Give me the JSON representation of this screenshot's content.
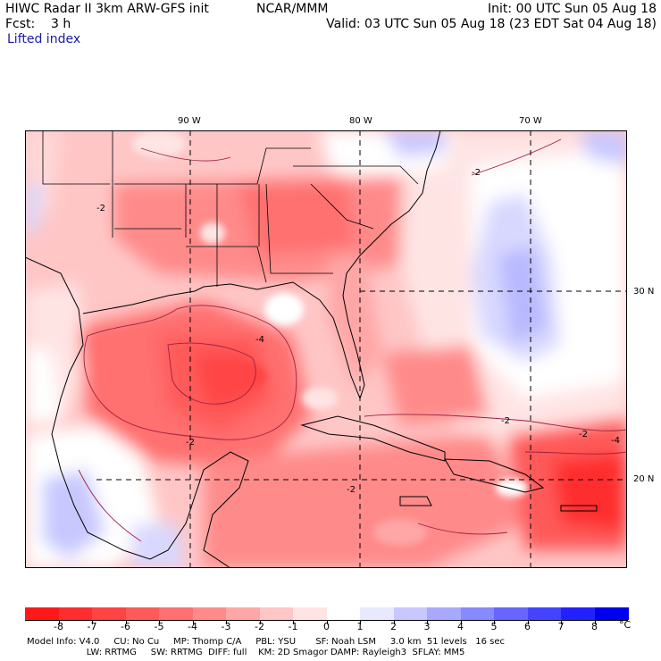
{
  "header": {
    "left_line1": "HIWC Radar II 3km ARW-GFS init",
    "center_line1": "NCAR/MMM",
    "right_line1": "Init: 00 UTC Sun 05 Aug 18",
    "left_line2": "Fcst:    3 h",
    "right_line2": "Valid: 03 UTC Sun 05 Aug 18 (23 EDT Sat 04 Aug 18)",
    "field_name": "Lifted index"
  },
  "map": {
    "lon_labels": [
      "90 W",
      "80 W",
      "70 W"
    ],
    "lat_labels": [
      "30 N",
      "20 N"
    ],
    "contour_labels": [
      "-2",
      "-4",
      "-2",
      "-2",
      "-2",
      "-4",
      "-2",
      "-2"
    ]
  },
  "colorbar": {
    "unit": "°C",
    "ticks": [
      "-8",
      "-7",
      "-6",
      "-5",
      "-4",
      "-3",
      "-2",
      "-1",
      "0",
      "1",
      "2",
      "3",
      "4",
      "5",
      "6",
      "7",
      "8"
    ],
    "colors": [
      "#ff1a1a",
      "#ff2e2e",
      "#ff4444",
      "#ff5a5a",
      "#ff7070",
      "#ff8a8a",
      "#ffa6a6",
      "#ffc6c6",
      "#ffe4e4",
      "#ffffff",
      "#e8e8ff",
      "#c8c8ff",
      "#a8a8ff",
      "#8888ff",
      "#6666ff",
      "#4444ff",
      "#2222ff",
      "#0000ee"
    ]
  },
  "footer": {
    "line1": "Model Info: V4.0     CU: No Cu     MP: Thomp C/A     PBL: YSU       SF: Noah LSM     3.0 km  51 levels   16 sec",
    "line2": "                     LW: RRTMG     SW: RRTMG  DIFF: full    KM: 2D Smagor DAMP: Rayleigh3  SFLAY: MM5"
  }
}
